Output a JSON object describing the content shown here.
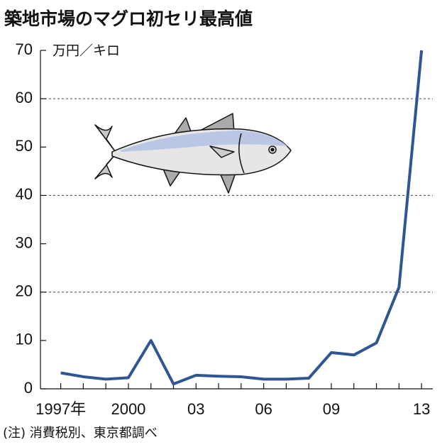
{
  "chart_data": {
    "type": "line",
    "title": "築地市場のマグロ初セリ最高値",
    "y_label": "万円／キロ",
    "note": "(注) 消費税別、東京都調べ",
    "x": [
      1997,
      1998,
      1999,
      2000,
      2001,
      2002,
      2003,
      2004,
      2005,
      2006,
      2007,
      2008,
      2009,
      2010,
      2011,
      2012,
      2013
    ],
    "series": [
      {
        "color": "#2f5592",
        "values": [
          3.3,
          2.5,
          2.0,
          2.3,
          10.0,
          1.0,
          2.8,
          2.6,
          2.5,
          2.0,
          2.0,
          2.2,
          7.5,
          7.0,
          9.5,
          21.0,
          70.0
        ]
      }
    ],
    "xlim": [
      1996.1,
      2013.5
    ],
    "xticks": [
      {
        "value": 1997,
        "label": "1997年"
      },
      2000,
      {
        "value": 2003,
        "label": "03"
      },
      {
        "value": 2006,
        "label": "06"
      },
      {
        "value": 2009,
        "label": "09"
      },
      {
        "value": 2013,
        "label": "13"
      }
    ],
    "ylim": [
      0,
      70
    ],
    "yticks": [
      0,
      10,
      20,
      30,
      40,
      50,
      60,
      70
    ],
    "grid_values": [
      20,
      40,
      60
    ]
  }
}
